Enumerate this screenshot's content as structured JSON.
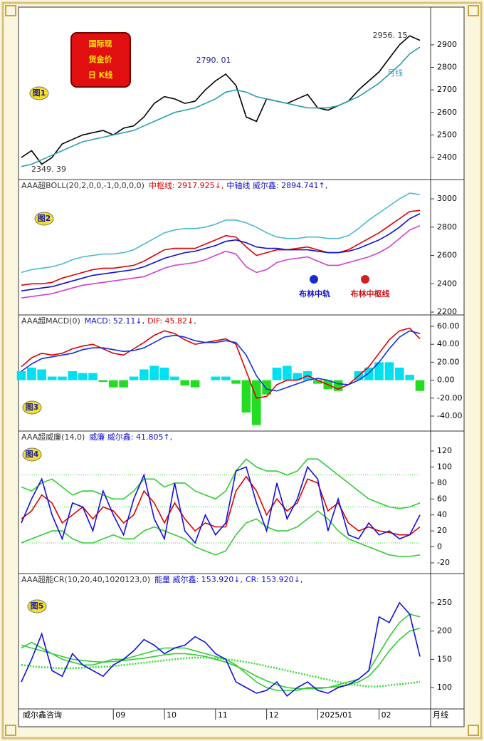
{
  "chart_data": [
    {
      "type": "line",
      "badge": [
        "国际现",
        "货金价",
        "日 K线"
      ],
      "tag": "图1",
      "annotations": [
        "2790. 01",
        "2956. 15",
        "2349. 39",
        "月线"
      ],
      "xlim": [
        0,
        39
      ],
      "ylim": [
        2302,
        3061
      ],
      "yticks": [
        2400,
        2500,
        2600,
        2700,
        2800,
        2900
      ],
      "series": [
        {
          "color": "#000000",
          "values": [
            2400,
            2430,
            2370,
            2400,
            2460,
            2480,
            2500,
            2510,
            2520,
            2500,
            2530,
            2540,
            2580,
            2640,
            2670,
            2660,
            2640,
            2650,
            2700,
            2740,
            2770,
            2720,
            2580,
            2560,
            2660,
            2650,
            2640,
            2660,
            2680,
            2620,
            2610,
            2630,
            2650,
            2700,
            2740,
            2780,
            2840,
            2900,
            2940,
            2920
          ]
        },
        {
          "color": "#2aa0b0",
          "values": [
            2360,
            2370,
            2390,
            2410,
            2430,
            2450,
            2470,
            2480,
            2490,
            2500,
            2510,
            2520,
            2540,
            2560,
            2580,
            2600,
            2610,
            2620,
            2640,
            2660,
            2690,
            2700,
            2690,
            2670,
            2660,
            2650,
            2640,
            2630,
            2620,
            2620,
            2620,
            2630,
            2650,
            2670,
            2700,
            2730,
            2770,
            2810,
            2860,
            2890
          ]
        }
      ]
    },
    {
      "type": "line",
      "title": "AAA超BOLL(20,2,0,0,-1,0,0,0,0)",
      "tag": "图2",
      "annotations": [
        "布林中轨",
        "布林中枢线"
      ],
      "xlim": [
        0,
        39
      ],
      "ylim": [
        2180,
        3136
      ],
      "yticks": [
        2200,
        2400,
        2600,
        2800,
        3000
      ],
      "series": [
        {
          "color": "#4cb8d0",
          "values": [
            2480,
            2500,
            2510,
            2520,
            2540,
            2570,
            2590,
            2600,
            2610,
            2610,
            2620,
            2640,
            2680,
            2720,
            2760,
            2780,
            2790,
            2790,
            2800,
            2820,
            2850,
            2850,
            2830,
            2800,
            2760,
            2730,
            2720,
            2720,
            2730,
            2730,
            2720,
            2720,
            2740,
            2790,
            2850,
            2900,
            2950,
            3000,
            3040,
            3030
          ]
        },
        {
          "color": "#d040d0",
          "values": [
            2300,
            2310,
            2320,
            2330,
            2350,
            2370,
            2390,
            2400,
            2410,
            2420,
            2430,
            2440,
            2450,
            2480,
            2510,
            2530,
            2540,
            2550,
            2570,
            2600,
            2630,
            2610,
            2520,
            2480,
            2500,
            2550,
            2570,
            2580,
            2590,
            2560,
            2530,
            2530,
            2550,
            2570,
            2590,
            2620,
            2660,
            2720,
            2780,
            2810
          ]
        },
        {
          "name": "中枢线: 2917.925↓,",
          "color": "#e00000",
          "values": [
            2390,
            2400,
            2400,
            2410,
            2440,
            2460,
            2480,
            2500,
            2510,
            2510,
            2520,
            2530,
            2560,
            2600,
            2640,
            2650,
            2650,
            2650,
            2680,
            2710,
            2740,
            2730,
            2660,
            2600,
            2620,
            2640,
            2640,
            2650,
            2660,
            2640,
            2620,
            2620,
            2640,
            2680,
            2720,
            2760,
            2810,
            2860,
            2910,
            2918
          ]
        },
        {
          "name": "中轴线 威尔鑫: 2894.741↑,",
          "color": "#1010d0",
          "values": [
            2350,
            2360,
            2370,
            2380,
            2400,
            2420,
            2440,
            2460,
            2470,
            2480,
            2490,
            2500,
            2520,
            2550,
            2580,
            2600,
            2620,
            2630,
            2650,
            2670,
            2700,
            2710,
            2690,
            2660,
            2650,
            2650,
            2640,
            2640,
            2640,
            2630,
            2620,
            2620,
            2630,
            2650,
            2680,
            2710,
            2750,
            2800,
            2860,
            2895
          ]
        }
      ]
    },
    {
      "type": "line",
      "title": "AAA超MACD(0)",
      "tag": "图3",
      "xlim": [
        0,
        39
      ],
      "ylim": [
        -56.7,
        72.7
      ],
      "yticks": [
        {
          "value": 60,
          "label": "60.00"
        },
        {
          "value": 40,
          "label": "40.00"
        },
        {
          "value": 20,
          "label": "20.00"
        },
        {
          "value": 0,
          "label": "0.00"
        },
        {
          "value": -20,
          "label": "-20.00"
        },
        {
          "value": -40,
          "label": "-40.00"
        }
      ],
      "series": [
        {
          "name": "MACD: 52.11↓,",
          "kind": "bar",
          "color": "#00e0f0",
          "negative_color": "#22dd22",
          "label_color": "#1010d0",
          "values": [
            10,
            14,
            12,
            4,
            4,
            10,
            8,
            8,
            -2,
            -8,
            -8,
            4,
            12,
            16,
            14,
            4,
            -6,
            -8,
            0,
            4,
            4,
            -4,
            -36,
            -50,
            -16,
            14,
            16,
            8,
            10,
            -4,
            -10,
            -12,
            0,
            10,
            14,
            20,
            20,
            14,
            6,
            -12
          ]
        },
        {
          "name": "DIF: 45.82↓,",
          "color": "#e00000",
          "values": [
            15,
            25,
            30,
            28,
            30,
            35,
            38,
            40,
            35,
            30,
            28,
            35,
            42,
            50,
            55,
            52,
            45,
            40,
            42,
            44,
            46,
            40,
            10,
            -20,
            -18,
            -5,
            0,
            0,
            5,
            0,
            -5,
            -10,
            -5,
            5,
            15,
            30,
            45,
            55,
            58,
            46
          ]
        },
        {
          "color": "#1030e0",
          "values": [
            10,
            18,
            24,
            26,
            28,
            30,
            34,
            36,
            36,
            34,
            32,
            33,
            36,
            42,
            48,
            50,
            48,
            44,
            42,
            42,
            44,
            42,
            28,
            5,
            -10,
            -12,
            -8,
            -4,
            0,
            2,
            0,
            -4,
            -5,
            0,
            8,
            20,
            35,
            48,
            55,
            52
          ]
        }
      ]
    },
    {
      "type": "line",
      "title": "AAA超威廉(14,0)",
      "tag": "图4",
      "xlim": [
        0,
        39
      ],
      "ylim": [
        -33.4,
        145
      ],
      "yticks": [
        120,
        100,
        80,
        60,
        40,
        20,
        0,
        -20
      ],
      "levels": [
        90,
        50,
        5
      ],
      "series": [
        {
          "color": "#33cc33",
          "values": [
            75,
            70,
            80,
            85,
            75,
            65,
            70,
            70,
            65,
            60,
            60,
            70,
            85,
            85,
            75,
            80,
            80,
            70,
            65,
            60,
            70,
            95,
            110,
            100,
            95,
            95,
            90,
            95,
            110,
            110,
            100,
            90,
            80,
            70,
            60,
            55,
            50,
            48,
            50,
            55
          ]
        },
        {
          "color": "#33cc33",
          "values": [
            5,
            10,
            15,
            20,
            20,
            10,
            5,
            5,
            10,
            15,
            10,
            10,
            20,
            25,
            20,
            15,
            10,
            0,
            -5,
            -10,
            -5,
            15,
            30,
            35,
            25,
            20,
            20,
            25,
            35,
            45,
            35,
            20,
            10,
            5,
            0,
            -5,
            -10,
            -12,
            -12,
            -10
          ]
        },
        {
          "color": "#e00000",
          "values": [
            35,
            45,
            65,
            55,
            30,
            40,
            50,
            35,
            50,
            45,
            30,
            40,
            70,
            55,
            30,
            55,
            35,
            20,
            30,
            25,
            25,
            70,
            88,
            70,
            40,
            60,
            45,
            55,
            85,
            80,
            45,
            55,
            30,
            20,
            25,
            20,
            18,
            15,
            15,
            25
          ]
        },
        {
          "name": "威廉 威尔鑫: 41.805↑,",
          "color": "#1010e0",
          "values": [
            30,
            60,
            85,
            40,
            10,
            55,
            50,
            20,
            70,
            40,
            15,
            60,
            90,
            35,
            10,
            80,
            20,
            5,
            40,
            15,
            30,
            95,
            100,
            55,
            20,
            80,
            35,
            60,
            100,
            85,
            20,
            60,
            15,
            10,
            30,
            15,
            20,
            10,
            15,
            40
          ]
        }
      ]
    },
    {
      "type": "line",
      "title": "AAA超能CR(10,20,40,1020123,0)",
      "tag": "图5",
      "xlim": [
        0,
        39
      ],
      "ylim": [
        62.2,
        301.7
      ],
      "yticks": [
        100,
        150,
        200,
        250
      ],
      "series": [
        {
          "color": "#33cc33",
          "values": [
            170,
            180,
            170,
            160,
            150,
            145,
            140,
            140,
            145,
            150,
            150,
            155,
            160,
            165,
            170,
            170,
            170,
            165,
            160,
            155,
            150,
            140,
            125,
            110,
            100,
            95,
            95,
            95,
            100,
            100,
            100,
            105,
            110,
            115,
            130,
            160,
            190,
            215,
            230,
            225
          ]
        },
        {
          "name": "能量 威尔鑫: 153.920↓,",
          "color": "#33cc33",
          "label_color": "#1010d0",
          "values": [
            175,
            170,
            165,
            160,
            155,
            150,
            148,
            146,
            145,
            146,
            148,
            150,
            152,
            155,
            158,
            160,
            160,
            158,
            155,
            150,
            145,
            138,
            130,
            120,
            112,
            105,
            100,
            98,
            98,
            98,
            100,
            102,
            105,
            110,
            120,
            140,
            165,
            185,
            200,
            205
          ]
        },
        {
          "color": "#33dd33",
          "dotted": true,
          "values": [
            140,
            138,
            136,
            135,
            134,
            134,
            135,
            136,
            137,
            138,
            140,
            142,
            144,
            146,
            148,
            150,
            152,
            153,
            153,
            152,
            150,
            148,
            145,
            142,
            138,
            134,
            130,
            126,
            122,
            118,
            114,
            110,
            106,
            104,
            102,
            102,
            104,
            106,
            108,
            110
          ]
        },
        {
          "name": "CR: 153.920↓,",
          "color": "#1010e0",
          "values": [
            110,
            150,
            195,
            130,
            120,
            160,
            140,
            130,
            120,
            140,
            150,
            165,
            185,
            175,
            160,
            170,
            175,
            190,
            180,
            160,
            150,
            110,
            100,
            90,
            95,
            110,
            85,
            100,
            110,
            95,
            90,
            100,
            105,
            115,
            130,
            225,
            215,
            250,
            230,
            155
          ]
        }
      ]
    }
  ],
  "x_axis": {
    "brand": "威尔鑫咨询",
    "period": "月线",
    "ticks": [
      {
        "value": 9,
        "label": "09"
      },
      {
        "value": 14,
        "label": "10"
      },
      {
        "value": 19,
        "label": "11"
      },
      {
        "value": 24,
        "label": "12"
      },
      {
        "value": 29,
        "label": "2025/01"
      },
      {
        "value": 35,
        "label": "02"
      }
    ]
  }
}
